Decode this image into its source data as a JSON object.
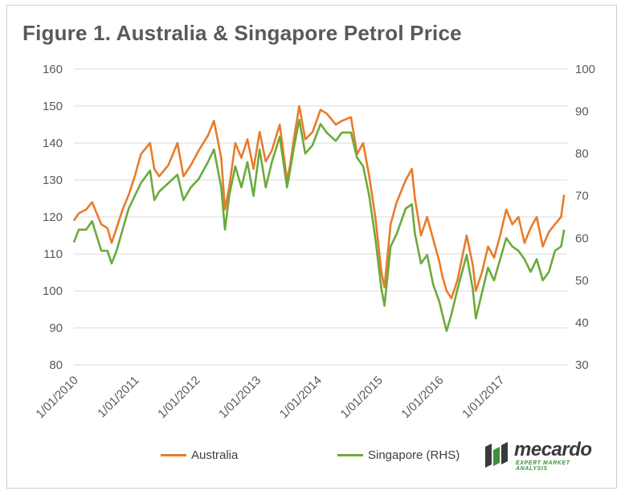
{
  "title": "Figure 1. Australia & Singapore Petrol Price",
  "colors": {
    "australia": "#E97B2A",
    "singapore": "#6BAA3C",
    "grid": "#D9D9D9",
    "text": "#595959"
  },
  "legend": {
    "australia": "Australia",
    "singapore": "Singapore (RHS)"
  },
  "brand": {
    "name": "mecardo",
    "tagline": "EXPERT MARKET ANALYSIS",
    "icon": "mecardo-logo-icon"
  },
  "chart_data": {
    "type": "line",
    "x_ticks": [
      "1/01/2010",
      "1/01/2011",
      "1/01/2012",
      "1/01/2013",
      "1/01/2014",
      "1/01/2015",
      "1/01/2016",
      "1/01/2017"
    ],
    "y_left": {
      "ylim": [
        80,
        160
      ],
      "ticks": [
        80,
        90,
        100,
        110,
        120,
        130,
        140,
        150,
        160
      ]
    },
    "y_right": {
      "ylim": [
        30,
        100
      ],
      "ticks": [
        30,
        40,
        50,
        60,
        70,
        80,
        90,
        100
      ]
    },
    "x_range": [
      2010.0,
      2018.1
    ],
    "grid": "horizontal",
    "legend_position": "bottom",
    "series": [
      {
        "name": "Australia",
        "axis": "left",
        "x": [
          2010.0,
          2010.08,
          2010.2,
          2010.3,
          2010.45,
          2010.55,
          2010.62,
          2010.7,
          2010.8,
          2010.9,
          2011.0,
          2011.1,
          2011.25,
          2011.32,
          2011.4,
          2011.55,
          2011.7,
          2011.8,
          2011.92,
          2012.05,
          2012.2,
          2012.3,
          2012.42,
          2012.48,
          2012.55,
          2012.65,
          2012.75,
          2012.85,
          2012.95,
          2013.05,
          2013.15,
          2013.25,
          2013.38,
          2013.5,
          2013.55,
          2013.62,
          2013.7,
          2013.8,
          2013.92,
          2014.05,
          2014.15,
          2014.3,
          2014.4,
          2014.55,
          2014.65,
          2014.75,
          2014.85,
          2014.95,
          2015.05,
          2015.1,
          2015.2,
          2015.3,
          2015.45,
          2015.55,
          2015.6,
          2015.7,
          2015.8,
          2015.9,
          2016.0,
          2016.05,
          2016.12,
          2016.2,
          2016.3,
          2016.45,
          2016.55,
          2016.6,
          2016.7,
          2016.8,
          2016.9,
          2017.0,
          2017.1,
          2017.2,
          2017.3,
          2017.4,
          2017.5,
          2017.6,
          2017.7,
          2017.8,
          2017.9,
          2018.0,
          2018.05
        ],
        "values": [
          119,
          121,
          122,
          124,
          118,
          117,
          113,
          117,
          122,
          126,
          131,
          137,
          140,
          133,
          131,
          134,
          140,
          131,
          134,
          138,
          142,
          146,
          136,
          122,
          128,
          140,
          136,
          141,
          133,
          143,
          135,
          138,
          145,
          130,
          134,
          142,
          150,
          141,
          143,
          149,
          148,
          145,
          146,
          147,
          137,
          140,
          131,
          120,
          105,
          101,
          118,
          124,
          130,
          133,
          125,
          115,
          120,
          114,
          108,
          104,
          100,
          98,
          103,
          115,
          107,
          100,
          105,
          112,
          109,
          115,
          122,
          118,
          120,
          113,
          117,
          120,
          112,
          116,
          118,
          120,
          126
        ]
      },
      {
        "name": "Singapore (RHS)",
        "axis": "right",
        "x": [
          2010.0,
          2010.08,
          2010.2,
          2010.3,
          2010.45,
          2010.55,
          2010.62,
          2010.7,
          2010.8,
          2010.9,
          2011.0,
          2011.1,
          2011.25,
          2011.32,
          2011.4,
          2011.55,
          2011.7,
          2011.8,
          2011.92,
          2012.05,
          2012.2,
          2012.3,
          2012.42,
          2012.48,
          2012.55,
          2012.65,
          2012.75,
          2012.85,
          2012.95,
          2013.05,
          2013.15,
          2013.25,
          2013.38,
          2013.5,
          2013.55,
          2013.62,
          2013.7,
          2013.8,
          2013.92,
          2014.05,
          2014.15,
          2014.3,
          2014.4,
          2014.55,
          2014.65,
          2014.75,
          2014.85,
          2014.95,
          2015.05,
          2015.1,
          2015.2,
          2015.3,
          2015.45,
          2015.55,
          2015.6,
          2015.7,
          2015.8,
          2015.9,
          2016.0,
          2016.05,
          2016.12,
          2016.2,
          2016.3,
          2016.45,
          2016.55,
          2016.6,
          2016.7,
          2016.8,
          2016.9,
          2017.0,
          2017.1,
          2017.2,
          2017.3,
          2017.4,
          2017.5,
          2017.6,
          2017.7,
          2017.8,
          2017.9,
          2018.0,
          2018.05
        ],
        "values": [
          59,
          62,
          62,
          64,
          57,
          57,
          54,
          57,
          62,
          67,
          70,
          73,
          76,
          69,
          71,
          73,
          75,
          69,
          72,
          74,
          78,
          81,
          72,
          62,
          70,
          77,
          72,
          78,
          70,
          81,
          72,
          78,
          84,
          72,
          76,
          82,
          88,
          80,
          82,
          87,
          85,
          83,
          85,
          85,
          79,
          77,
          70,
          60,
          48,
          44,
          58,
          61,
          67,
          68,
          61,
          54,
          56,
          49,
          45,
          42,
          38,
          42,
          48,
          56,
          48,
          41,
          47,
          53,
          50,
          55,
          60,
          58,
          57,
          55,
          52,
          55,
          50,
          52,
          57,
          58,
          62
        ]
      }
    ]
  }
}
